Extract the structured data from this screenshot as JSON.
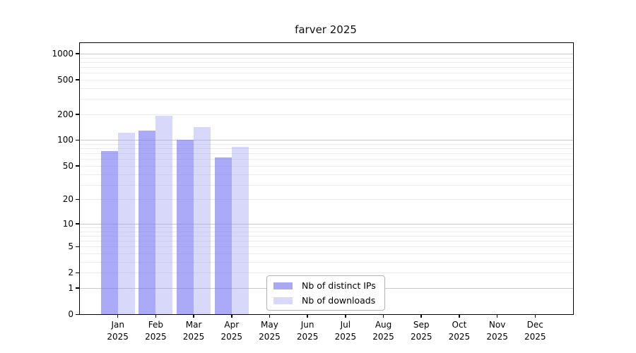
{
  "title": "farver 2025",
  "colors": {
    "axis": "#000000",
    "major_grid": "#c8c8c8",
    "minor_grid": "#ececec",
    "legend_border": "#b2b2b2",
    "distinct_ips_bar": "rgba(113,113,243,0.6)",
    "downloads_bar": "rgba(158,158,242,0.4)",
    "distinct_ips_solid": "#a9a9f2",
    "downloads_solid": "#d8d8fa"
  },
  "chart_data": {
    "type": "bar",
    "title": "farver 2025",
    "xlabel": "",
    "ylabel": "",
    "y_scale": "log10(1+x)",
    "ylim": [
      0,
      1300
    ],
    "grid": true,
    "legend_position": "bottom-center",
    "y_ticks": [
      0,
      1,
      2,
      5,
      10,
      20,
      50,
      100,
      200,
      500,
      1000
    ],
    "categories": [
      "Jan 2025",
      "Feb 2025",
      "Mar 2025",
      "Apr 2025",
      "May 2025",
      "Jun 2025",
      "Jul 2025",
      "Aug 2025",
      "Sep 2025",
      "Oct 2025",
      "Nov 2025",
      "Dec 2025"
    ],
    "months": [
      {
        "line1": "Jan",
        "line2": "2025"
      },
      {
        "line1": "Feb",
        "line2": "2025"
      },
      {
        "line1": "Mar",
        "line2": "2025"
      },
      {
        "line1": "Apr",
        "line2": "2025"
      },
      {
        "line1": "May",
        "line2": "2025"
      },
      {
        "line1": "Jun",
        "line2": "2025"
      },
      {
        "line1": "Jul",
        "line2": "2025"
      },
      {
        "line1": "Aug",
        "line2": "2025"
      },
      {
        "line1": "Sep",
        "line2": "2025"
      },
      {
        "line1": "Oct",
        "line2": "2025"
      },
      {
        "line1": "Nov",
        "line2": "2025"
      },
      {
        "line1": "Dec",
        "line2": "2025"
      }
    ],
    "series": [
      {
        "name": "Nb of distinct IPs",
        "bar_color": "rgba(113,113,243,0.6)",
        "legend_color": "#a9a9f2",
        "values": [
          75,
          130,
          100,
          63,
          null,
          null,
          null,
          null,
          null,
          null,
          null,
          null
        ]
      },
      {
        "name": "Nb of downloads",
        "bar_color": "rgba(158,158,242,0.4)",
        "legend_color": "#d8d8fa",
        "values": [
          122,
          192,
          142,
          83,
          null,
          null,
          null,
          null,
          null,
          null,
          null,
          null
        ]
      }
    ]
  }
}
